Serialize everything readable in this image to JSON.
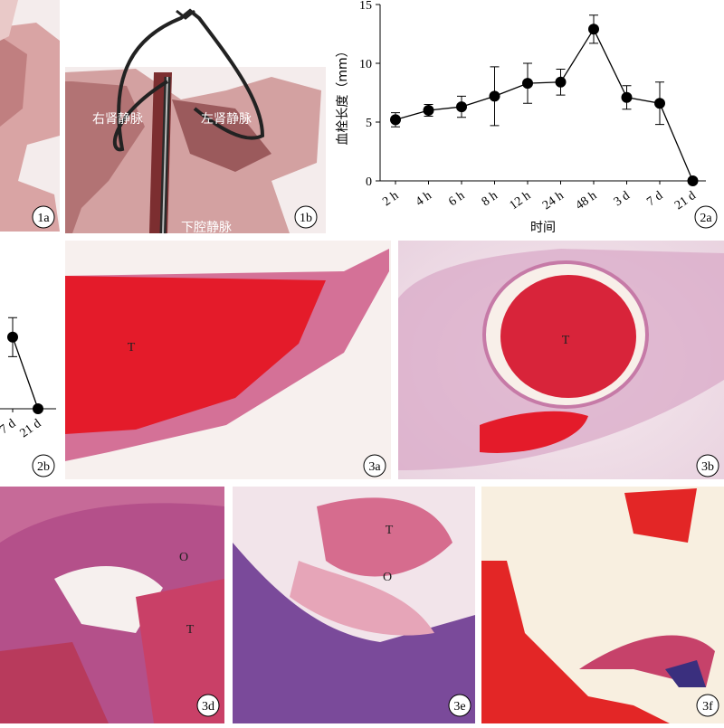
{
  "panel_labels": [
    "1a",
    "1b",
    "2a",
    "2b",
    "3a",
    "3b",
    "3d",
    "3e",
    "3f"
  ],
  "figure_1b": {
    "labels": [
      "右肾静脉",
      "左肾静脉",
      "下腔静脉"
    ]
  },
  "chart_data": [
    {
      "type": "line",
      "ylabel": "血栓长度（mm）",
      "xlabel": "时间",
      "categories": [
        "2 h",
        "4 h",
        "6 h",
        "8 h",
        "12 h",
        "24 h",
        "48 h",
        "3 d",
        "7 d",
        "21 d"
      ],
      "values": [
        5.2,
        6.0,
        6.3,
        7.2,
        8.3,
        8.4,
        12.9,
        7.1,
        6.6,
        0
      ],
      "errors": [
        0.6,
        0.5,
        0.9,
        2.5,
        1.7,
        1.1,
        1.2,
        1.0,
        1.8,
        0
      ],
      "ylim": [
        0,
        15
      ],
      "yticks": [
        0,
        5,
        10,
        15
      ],
      "color": "#000000"
    },
    {
      "type": "line",
      "categories": [
        "7 d",
        "21 d"
      ],
      "values": [
        6.6,
        0
      ],
      "errors": [
        1.8,
        0
      ],
      "ylim": [
        0,
        15
      ],
      "color": "#000000"
    }
  ],
  "histology": {
    "3a": [
      "T"
    ],
    "3b": [
      "T"
    ],
    "3d": [
      "O",
      "T"
    ],
    "3e": [
      "T",
      "O"
    ]
  }
}
